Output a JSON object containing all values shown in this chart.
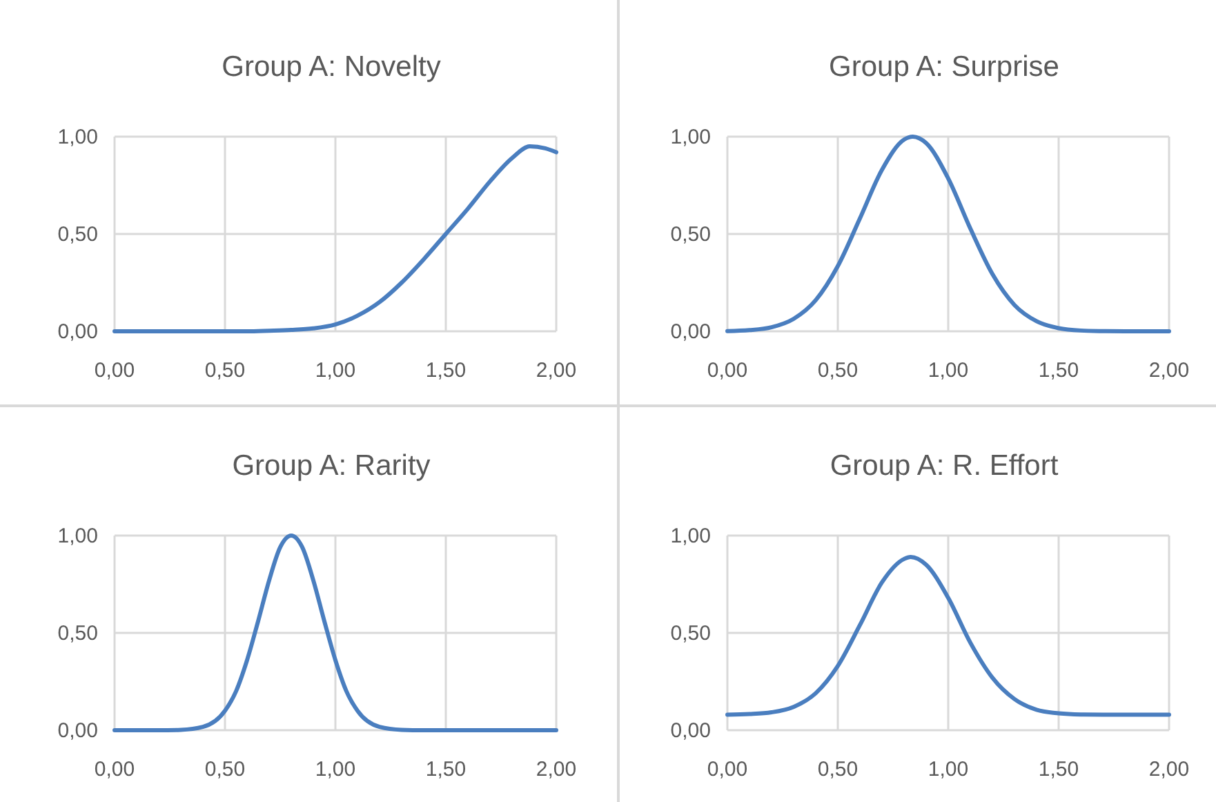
{
  "chart_data": [
    {
      "type": "line",
      "title": "Group A: Novelty",
      "x": [
        0,
        0.1,
        0.2,
        0.3,
        0.4,
        0.5,
        0.6,
        0.7,
        0.8,
        0.9,
        1.0,
        1.1,
        1.2,
        1.3,
        1.4,
        1.5,
        1.6,
        1.7,
        1.8,
        1.88,
        1.95,
        2.0
      ],
      "series": [
        {
          "color": "#4a7ebf",
          "values": [
            0,
            0,
            0,
            0,
            0,
            0,
            0,
            0.003,
            0.007,
            0.015,
            0.035,
            0.08,
            0.15,
            0.25,
            0.37,
            0.5,
            0.63,
            0.77,
            0.89,
            0.95,
            0.94,
            0.92
          ]
        }
      ],
      "xlim": [
        0,
        2
      ],
      "ylim": [
        0,
        1
      ],
      "xticks": [
        {
          "value": 0,
          "label": "0,00"
        },
        {
          "value": 0.5,
          "label": "0,50"
        },
        {
          "value": 1,
          "label": "1,00"
        },
        {
          "value": 1.5,
          "label": "1,50"
        },
        {
          "value": 2,
          "label": "2,00"
        }
      ],
      "yticks": [
        {
          "value": 0,
          "label": "0,00"
        },
        {
          "value": 0.5,
          "label": "0,50"
        },
        {
          "value": 1,
          "label": "1,00"
        }
      ],
      "grid": true
    },
    {
      "type": "line",
      "title": "Group A: Surprise",
      "x": [
        0,
        0.1,
        0.2,
        0.3,
        0.4,
        0.5,
        0.6,
        0.7,
        0.8,
        0.84,
        0.9,
        1.0,
        1.1,
        1.2,
        1.3,
        1.4,
        1.5,
        1.6,
        1.7,
        1.8,
        1.9,
        2.0
      ],
      "series": [
        {
          "color": "#4a7ebf",
          "values": [
            0.001,
            0.006,
            0.021,
            0.064,
            0.16,
            0.335,
            0.58,
            0.83,
            0.985,
            1,
            0.967,
            0.785,
            0.528,
            0.294,
            0.135,
            0.052,
            0.016,
            0.004,
            0.001,
            0,
            0,
            0
          ]
        }
      ],
      "xlim": [
        0,
        2
      ],
      "ylim": [
        0,
        1
      ],
      "xticks": [
        {
          "value": 0,
          "label": "0,00"
        },
        {
          "value": 0.5,
          "label": "0,50"
        },
        {
          "value": 1,
          "label": "1,00"
        },
        {
          "value": 1.5,
          "label": "1,50"
        },
        {
          "value": 2,
          "label": "2,00"
        }
      ],
      "yticks": [
        {
          "value": 0,
          "label": "0,00"
        },
        {
          "value": 0.5,
          "label": "0,50"
        },
        {
          "value": 1,
          "label": "1,00"
        }
      ],
      "grid": true
    },
    {
      "type": "line",
      "title": "Group A: Rarity",
      "x": [
        0,
        0.1,
        0.2,
        0.3,
        0.4,
        0.5,
        0.55,
        0.6,
        0.65,
        0.7,
        0.75,
        0.8,
        0.85,
        0.9,
        0.95,
        1.0,
        1.05,
        1.1,
        1.2,
        1.3,
        1.4,
        1.5,
        1.6,
        1.7,
        1.8,
        1.9,
        2.0
      ],
      "series": [
        {
          "color": "#4a7ebf",
          "values": [
            0,
            0,
            0,
            0.002,
            0.017,
            0.1,
            0.2,
            0.36,
            0.56,
            0.77,
            0.94,
            1,
            0.94,
            0.77,
            0.56,
            0.36,
            0.2,
            0.1,
            0.017,
            0.002,
            0,
            0,
            0,
            0,
            0,
            0,
            0
          ]
        }
      ],
      "xlim": [
        0,
        2
      ],
      "ylim": [
        0,
        1
      ],
      "xticks": [
        {
          "value": 0,
          "label": "0,00"
        },
        {
          "value": 0.5,
          "label": "0,50"
        },
        {
          "value": 1,
          "label": "1,00"
        },
        {
          "value": 1.5,
          "label": "1,50"
        },
        {
          "value": 2,
          "label": "2,00"
        }
      ],
      "yticks": [
        {
          "value": 0,
          "label": "0,00"
        },
        {
          "value": 0.5,
          "label": "0,50"
        },
        {
          "value": 1,
          "label": "1,00"
        }
      ],
      "grid": true
    },
    {
      "type": "line",
      "title": "Group A: R. Effort",
      "x": [
        0,
        0.1,
        0.2,
        0.3,
        0.4,
        0.5,
        0.6,
        0.7,
        0.8,
        0.83,
        0.9,
        1.0,
        1.1,
        1.2,
        1.3,
        1.4,
        1.5,
        1.6,
        1.7,
        1.8,
        1.9,
        2.0
      ],
      "series": [
        {
          "color": "#4a7ebf",
          "values": [
            0.08,
            0.083,
            0.092,
            0.12,
            0.19,
            0.33,
            0.54,
            0.76,
            0.88,
            0.89,
            0.85,
            0.68,
            0.45,
            0.27,
            0.16,
            0.105,
            0.087,
            0.081,
            0.08,
            0.08,
            0.08,
            0.08
          ]
        }
      ],
      "xlim": [
        0,
        2
      ],
      "ylim": [
        0,
        1
      ],
      "xticks": [
        {
          "value": 0,
          "label": "0,00"
        },
        {
          "value": 0.5,
          "label": "0,50"
        },
        {
          "value": 1,
          "label": "1,00"
        },
        {
          "value": 1.5,
          "label": "1,50"
        },
        {
          "value": 2,
          "label": "2,00"
        }
      ],
      "yticks": [
        {
          "value": 0,
          "label": "0,00"
        },
        {
          "value": 0.5,
          "label": "0,50"
        },
        {
          "value": 1,
          "label": "1,00"
        }
      ],
      "grid": true
    }
  ]
}
